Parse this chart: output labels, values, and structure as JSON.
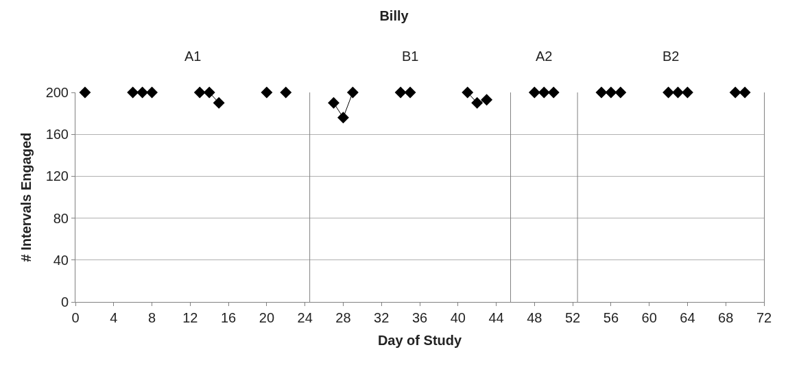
{
  "chart_data": {
    "type": "line",
    "title": "Billy",
    "xlabel": "Day of Study",
    "ylabel": "# Intervals Engaged",
    "x": [
      1,
      2,
      3,
      4,
      5,
      6,
      7,
      8,
      9,
      10,
      11,
      12,
      13,
      14,
      15,
      16,
      17,
      18,
      19,
      20,
      21,
      22,
      23,
      24,
      25,
      26,
      27,
      28,
      29,
      30,
      31,
      32,
      33,
      34,
      35,
      36,
      37,
      38,
      39,
      40,
      41,
      42,
      43,
      44,
      45,
      46,
      47,
      48,
      49,
      50,
      51,
      52,
      53,
      54,
      55,
      56,
      57,
      58,
      59,
      60,
      61,
      62,
      63,
      64,
      65,
      66,
      67,
      68,
      69,
      70
    ],
    "series": [
      {
        "color": "#000000",
        "values": [
          200,
          null,
          null,
          null,
          null,
          200,
          200,
          200,
          null,
          null,
          null,
          null,
          200,
          200,
          190,
          null,
          null,
          null,
          null,
          200,
          null,
          200,
          null,
          null,
          null,
          null,
          190,
          176,
          200,
          null,
          null,
          null,
          null,
          200,
          200,
          null,
          null,
          null,
          null,
          null,
          200,
          190,
          193,
          null,
          null,
          null,
          null,
          200,
          200,
          200,
          null,
          null,
          null,
          null,
          200,
          200,
          200,
          null,
          null,
          null,
          null,
          200,
          200,
          200,
          null,
          null,
          null,
          null,
          200,
          200
        ]
      }
    ],
    "xlim": [
      0,
      72
    ],
    "xticks": [
      0,
      4,
      8,
      12,
      16,
      20,
      24,
      28,
      32,
      36,
      40,
      44,
      48,
      52,
      56,
      60,
      64,
      68,
      72
    ],
    "ylim": [
      0,
      200
    ],
    "yticks": [
      0,
      40,
      80,
      120,
      160,
      200
    ],
    "ref_lines": [
      {
        "axis": "x",
        "value": 24.5,
        "color": "#808080"
      },
      {
        "axis": "x",
        "value": 45.5,
        "color": "#808080"
      },
      {
        "axis": "x",
        "value": 52.5,
        "color": "#808080"
      }
    ],
    "annotations": [
      "A1",
      "B1",
      "A2",
      "B2"
    ],
    "marker": "diamond",
    "line_style": "solid",
    "grid": "y"
  }
}
